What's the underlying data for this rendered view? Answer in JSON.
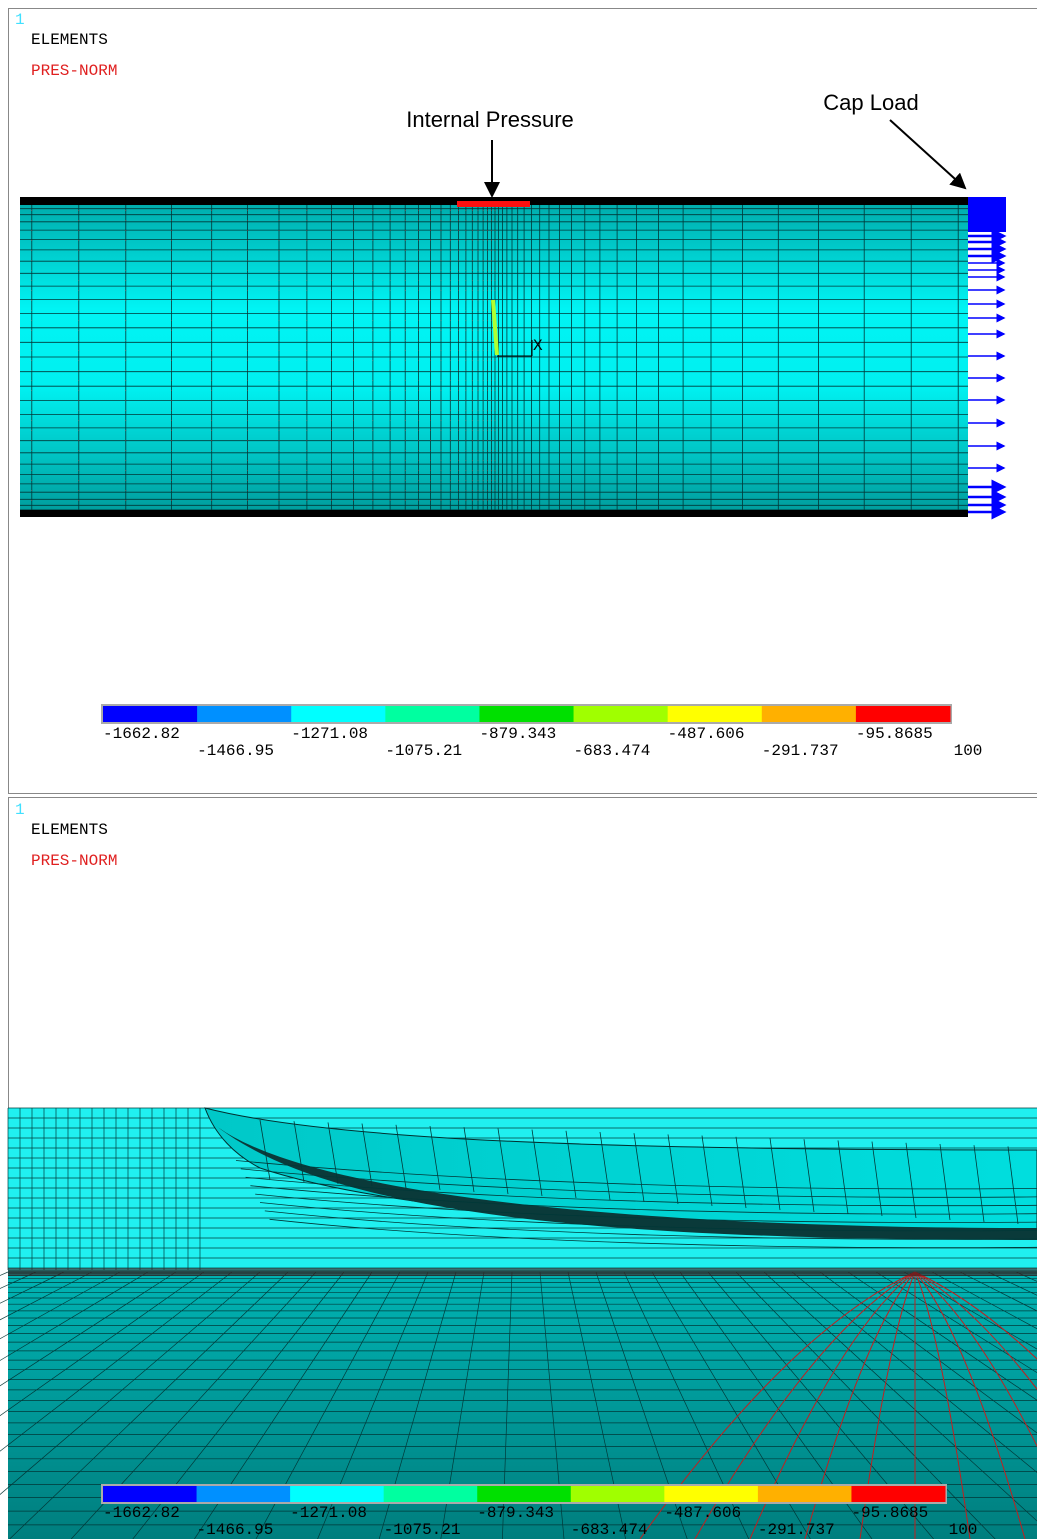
{
  "panels": [
    {
      "window_number": "1",
      "title": "ELEMENTS",
      "subtitle": "PRES-NORM",
      "annotations": [
        "Internal Pressure",
        "Cap Load"
      ],
      "axis_label": "X",
      "legend_labels": [
        "-1662.82",
        "-1466.95",
        "-1271.08",
        "-1075.21",
        "-879.343",
        "-683.474",
        "-487.606",
        "-291.737",
        "-95.8685",
        "100"
      ]
    },
    {
      "window_number": "1",
      "title": "ELEMENTS",
      "subtitle": "PRES-NORM",
      "legend_labels": [
        "-1662.82",
        "-1466.95",
        "-1271.08",
        "-1075.21",
        "-879.343",
        "-683.474",
        "-487.606",
        "-291.737",
        "-95.8685",
        "100"
      ]
    }
  ]
}
